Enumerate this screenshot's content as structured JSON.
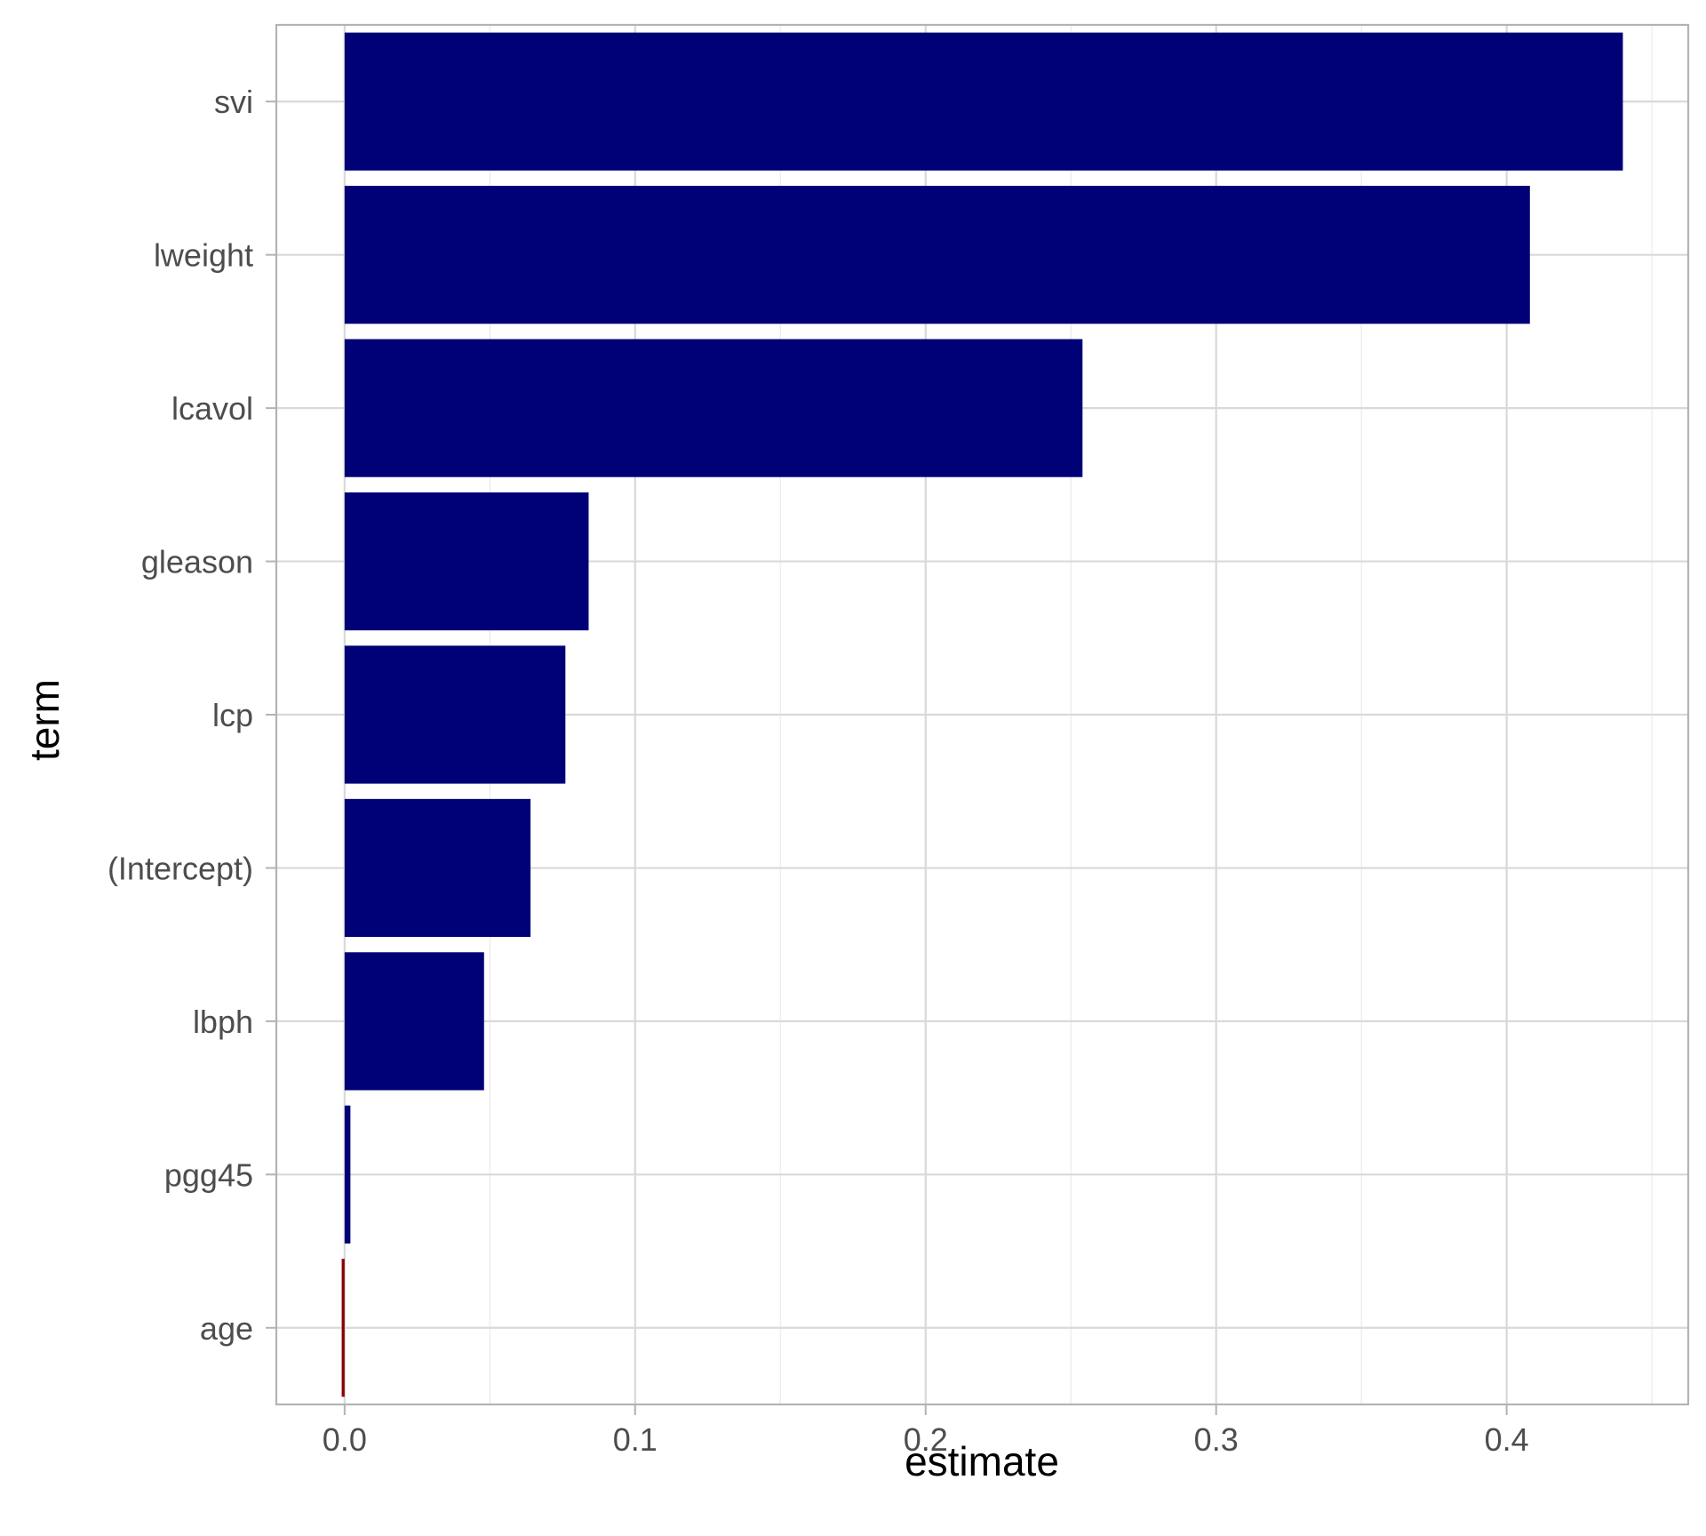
{
  "chart_data": {
    "type": "bar",
    "orientation": "horizontal",
    "xlabel": "estimate",
    "ylabel": "term",
    "xlim": [
      -0.0235,
      0.4625
    ],
    "x_ticks": [
      0.0,
      0.1,
      0.2,
      0.3,
      0.4
    ],
    "x_tick_labels": [
      "0.0",
      "0.1",
      "0.2",
      "0.3",
      "0.4"
    ],
    "x_minor_ticks": [
      0.05,
      0.15,
      0.25,
      0.35,
      0.45
    ],
    "grid": true,
    "legend": "none",
    "categories": [
      "svi",
      "lweight",
      "lcavol",
      "gleason",
      "lcp",
      "(Intercept)",
      "lbph",
      "pgg45",
      "age"
    ],
    "values": [
      0.44,
      0.408,
      0.254,
      0.084,
      0.076,
      0.064,
      0.048,
      0.002,
      -0.001
    ],
    "positive_color": "#000077",
    "negative_color": "#8B0000"
  }
}
